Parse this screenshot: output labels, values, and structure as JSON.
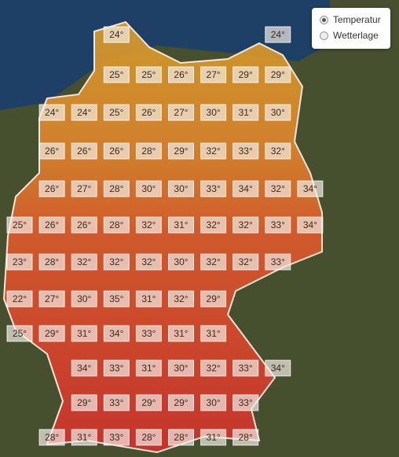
{
  "legend": {
    "options": [
      "Temperatur",
      "Wetterlage"
    ]
  },
  "grid": {
    "rows": [
      [
        "24°",
        "24°"
      ],
      [
        "25°",
        "25°",
        "26°",
        "27°",
        "29°",
        "29°"
      ],
      [
        "24°",
        "24°",
        "25°",
        "26°",
        "27°",
        "30°",
        "31°",
        "30°"
      ],
      [
        "26°",
        "26°",
        "26°",
        "28°",
        "29°",
        "32°",
        "33°",
        "32°"
      ],
      [
        "26°",
        "27°",
        "28°",
        "30°",
        "30°",
        "33°",
        "34°",
        "32°",
        "34°"
      ],
      [
        "25°",
        "26°",
        "26°",
        "28°",
        "32°",
        "31°",
        "32°",
        "32°",
        "33°",
        "34°"
      ],
      [
        "23°",
        "28°",
        "32°",
        "32°",
        "32°",
        "30°",
        "32°",
        "32°",
        "33°"
      ],
      [
        "22°",
        "27°",
        "30°",
        "35°",
        "31°",
        "32°",
        "29°"
      ],
      [
        "25°",
        "29°",
        "31°",
        "34°",
        "33°",
        "31°",
        "31°"
      ],
      [
        "34°",
        "33°",
        "31°",
        "30°",
        "32°",
        "33°",
        "34°"
      ],
      [
        "29°",
        "33°",
        "29°",
        "29°",
        "30°",
        "33°"
      ],
      [
        "28°",
        "31°",
        "33°",
        "28°",
        "28°",
        "31°",
        "28°"
      ]
    ]
  }
}
